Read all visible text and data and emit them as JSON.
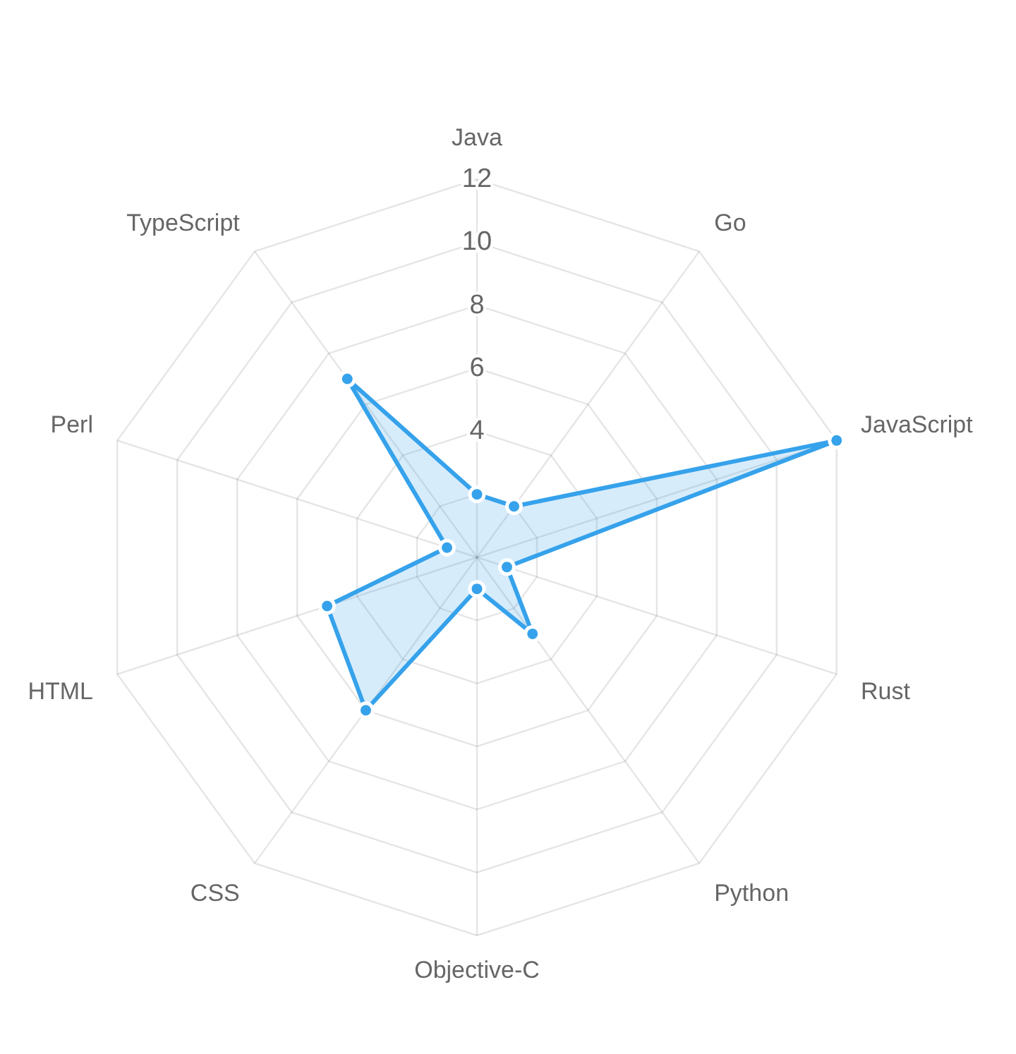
{
  "chart_data": {
    "type": "radar",
    "categories": [
      "Java",
      "Go",
      "JavaScript",
      "Rust",
      "Python",
      "Objective-C",
      "CSS",
      "HTML",
      "Perl",
      "TypeScript"
    ],
    "series": [
      {
        "color": "#36a2eb",
        "values": [
          2,
          2,
          12,
          1,
          3,
          1,
          6,
          5,
          1,
          7
        ]
      }
    ],
    "ylim": [
      0,
      12
    ],
    "yticks": [
      4,
      6,
      8,
      10,
      12
    ],
    "grid": true,
    "marker": "circle"
  }
}
